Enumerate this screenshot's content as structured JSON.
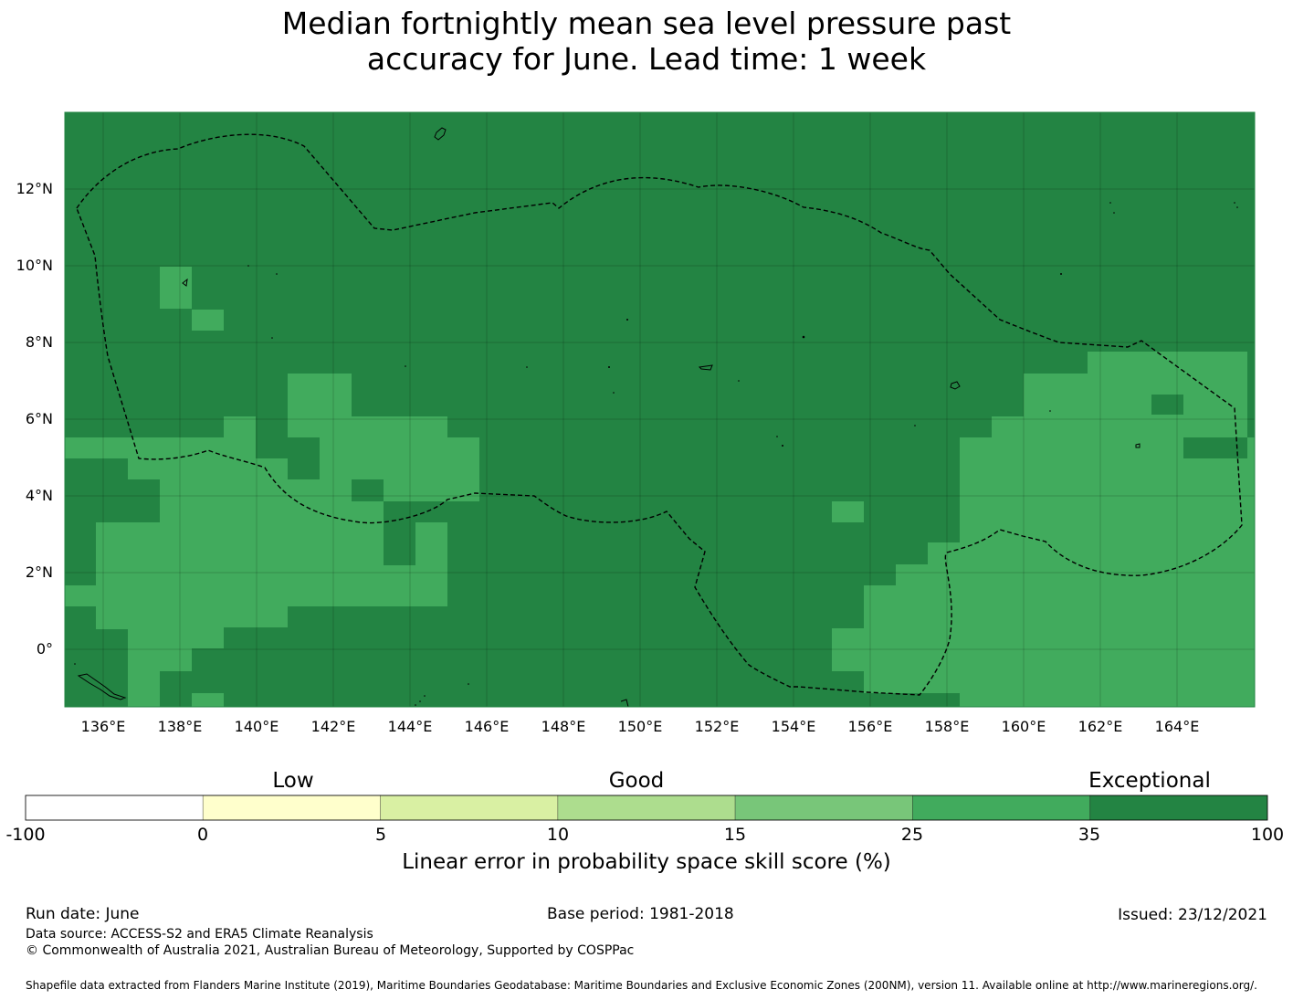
{
  "title": {
    "line1": "Median fortnightly mean sea level pressure past",
    "line2": "accuracy for June. Lead time: 1 week"
  },
  "map": {
    "lon_labels": [
      "136°E",
      "138°E",
      "140°E",
      "142°E",
      "144°E",
      "146°E",
      "148°E",
      "150°E",
      "152°E",
      "154°E",
      "156°E",
      "158°E",
      "160°E",
      "162°E",
      "164°E"
    ],
    "lat_labels": [
      "12°N",
      "10°N",
      "8°N",
      "6°N",
      "4°N",
      "2°N",
      "0°"
    ],
    "colors": {
      "exceptional": "#238443",
      "good_high": "#41ab5d",
      "ocean_line": "#000000"
    }
  },
  "colorbar": {
    "categories": [
      "Low",
      "Good",
      "Exceptional"
    ],
    "ticks": [
      "-100",
      "0",
      "5",
      "10",
      "15",
      "25",
      "35",
      "100"
    ],
    "colors": [
      "#ffffff",
      "#ffffcc",
      "#d9f0a3",
      "#addd8e",
      "#78c679",
      "#41ab5d",
      "#238443"
    ],
    "label": "Linear error in probability space skill score (%)"
  },
  "footer": {
    "run_date": "Run date: June",
    "base_period": "Base period: 1981-2018",
    "issued": "Issued: 23/12/2021",
    "data_source": "Data source: ACCESS-S2 and ERA5 Climate Reanalysis",
    "copyright": "© Commonwealth of Australia 2021, Australian Bureau of Meteorology, Supported by COSPPac",
    "shapefile": "Shapefile data extracted from Flanders Marine Institute (2019), Maritime Boundaries Geodatabase: Maritime Boundaries and Exclusive Economic Zones (200NM), version 11. Available online at http://www.marineregions.org/."
  }
}
